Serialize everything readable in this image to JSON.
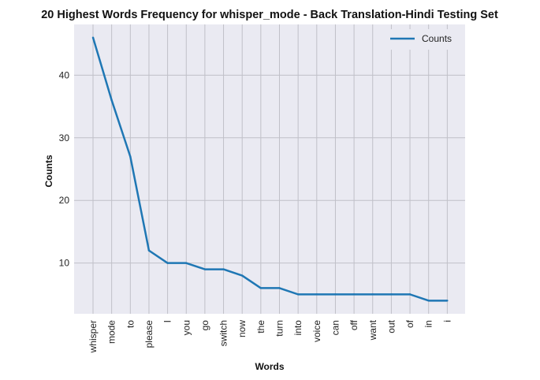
{
  "chart_data": {
    "type": "line",
    "title": "20 Highest Words Frequency for whisper_mode - Back Translation-Hindi Testing Set",
    "xlabel": "Words",
    "ylabel": "Counts",
    "categories": [
      "whisper",
      "mode",
      "to",
      "please",
      "I",
      "you",
      "go",
      "switch",
      "now",
      "the",
      "turn",
      "into",
      "voice",
      "can",
      "off",
      "want",
      "out",
      "of",
      "in",
      "i"
    ],
    "series": [
      {
        "name": "Counts",
        "values": [
          46,
          36,
          27,
          12,
          10,
          10,
          9,
          9,
          8,
          6,
          6,
          5,
          5,
          5,
          5,
          5,
          5,
          5,
          4,
          4
        ],
        "color": "#1f77b4"
      }
    ],
    "ylim": [
      1.9,
      48.1
    ],
    "yticks": [
      10,
      20,
      30,
      40
    ],
    "grid": true,
    "legend_position": "top-right",
    "colors": {
      "plot_background": "#eaeaf2",
      "grid": "#c0c0c8"
    }
  }
}
